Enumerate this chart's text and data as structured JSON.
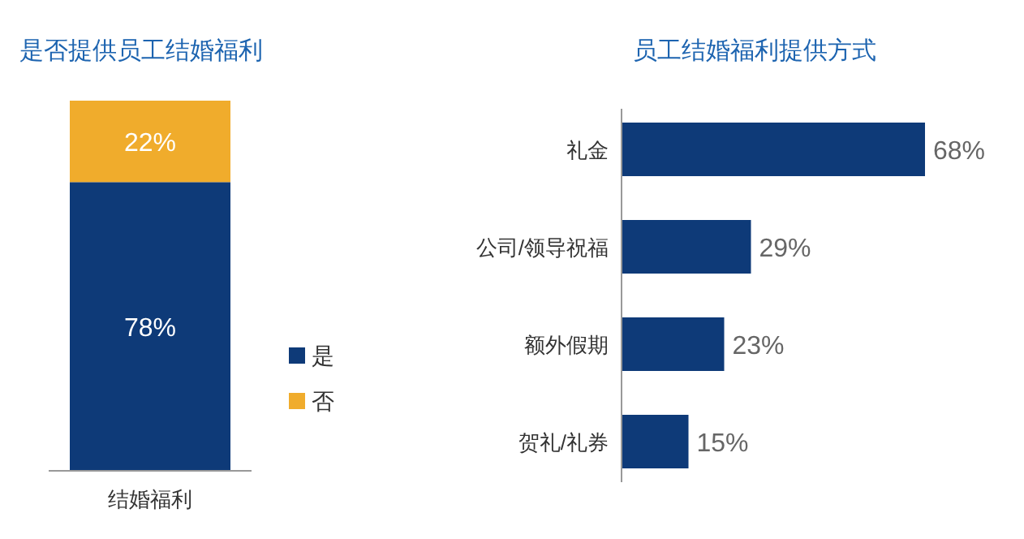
{
  "chart_data": [
    {
      "type": "bar",
      "title": "是否提供员工结婚福利",
      "categories": [
        "结婚福利"
      ],
      "stacked": true,
      "legend": "right",
      "series": [
        {
          "name": "是",
          "color": "#0e3a78",
          "values": [
            78
          ],
          "value_labels": [
            "78%"
          ]
        },
        {
          "name": "否",
          "color": "#f0ac2c",
          "values": [
            22
          ],
          "value_labels": [
            "22%"
          ]
        }
      ]
    },
    {
      "type": "bar",
      "title": "员工结婚福利提供方式",
      "orientation": "horizontal",
      "categories": [
        "礼金",
        "公司/领导祝福",
        "额外假期",
        "贺礼/礼券"
      ],
      "series": [
        {
          "color": "#0e3a78",
          "values": [
            68,
            29,
            23,
            15
          ],
          "value_labels": [
            "68%",
            "29%",
            "23%",
            "15%"
          ]
        }
      ]
    }
  ]
}
